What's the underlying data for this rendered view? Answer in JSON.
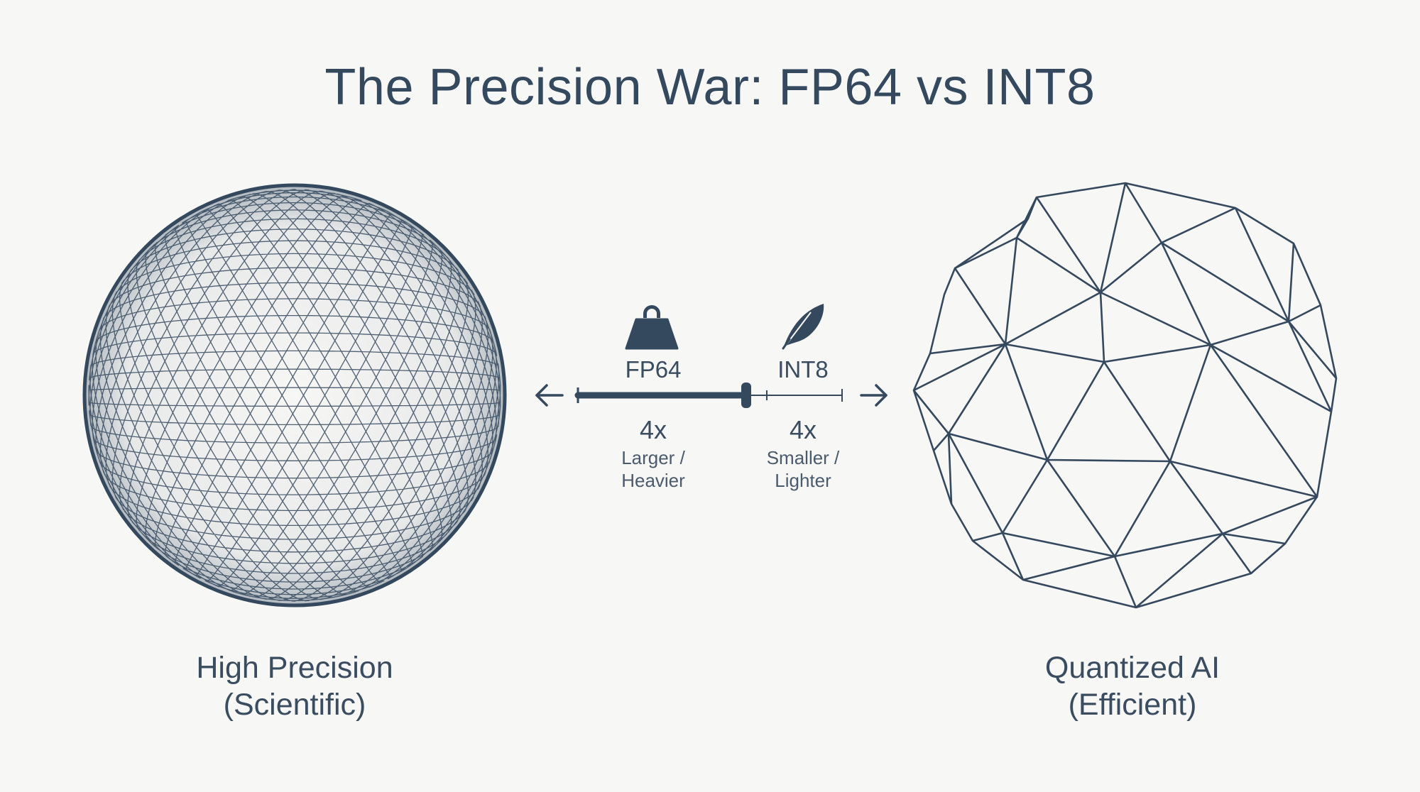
{
  "title": "The Precision War: FP64 vs INT8",
  "left": {
    "caption_line1": "High Precision",
    "caption_line2": "(Scientific)"
  },
  "right": {
    "caption_line1": "Quantized AI",
    "caption_line2": "(Efficient)"
  },
  "comparison": {
    "fp64": {
      "label": "FP64",
      "icon": "weight-icon",
      "factor": "4x",
      "desc_line1": "Larger /",
      "desc_line2": "Heavier"
    },
    "int8": {
      "label": "INT8",
      "icon": "feather-icon",
      "factor": "4x",
      "desc_line1": "Smaller /",
      "desc_line2": "Lighter"
    }
  },
  "colors": {
    "background": "#f7f7f5",
    "ink": "#34485e"
  }
}
